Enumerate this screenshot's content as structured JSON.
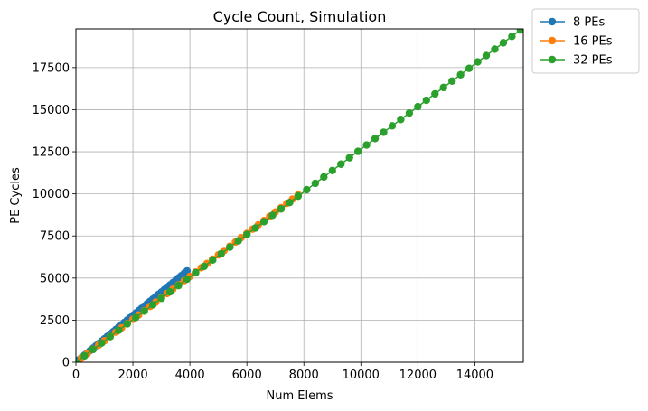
{
  "chart_data": {
    "type": "line",
    "title": "Cycle Count, Simulation",
    "xlabel": "Num Elems",
    "ylabel": "PE Cycles",
    "xlim": [
      0,
      15700
    ],
    "ylim": [
      0,
      19800
    ],
    "xticks": [
      0,
      2000,
      4000,
      6000,
      8000,
      10000,
      12000,
      14000
    ],
    "yticks": [
      0,
      2500,
      5000,
      7500,
      10000,
      12500,
      15000,
      17500
    ],
    "grid": true,
    "legend_position": "outside-top-right",
    "series": [
      {
        "name": "8 PEs",
        "color": "#1f77b4",
        "x_start": 0,
        "x_end": 3900,
        "step": 100,
        "slope": 1.39,
        "intercept": 0
      },
      {
        "name": "16 PEs",
        "color": "#ff7f0e",
        "x_start": 0,
        "x_end": 7900,
        "step": 200,
        "slope": 1.275,
        "intercept": 0
      },
      {
        "name": "32 PEs",
        "color": "#2ca02c",
        "x_start": 0,
        "x_end": 15600,
        "step": 300,
        "slope": 1.265,
        "intercept": 0
      }
    ]
  }
}
